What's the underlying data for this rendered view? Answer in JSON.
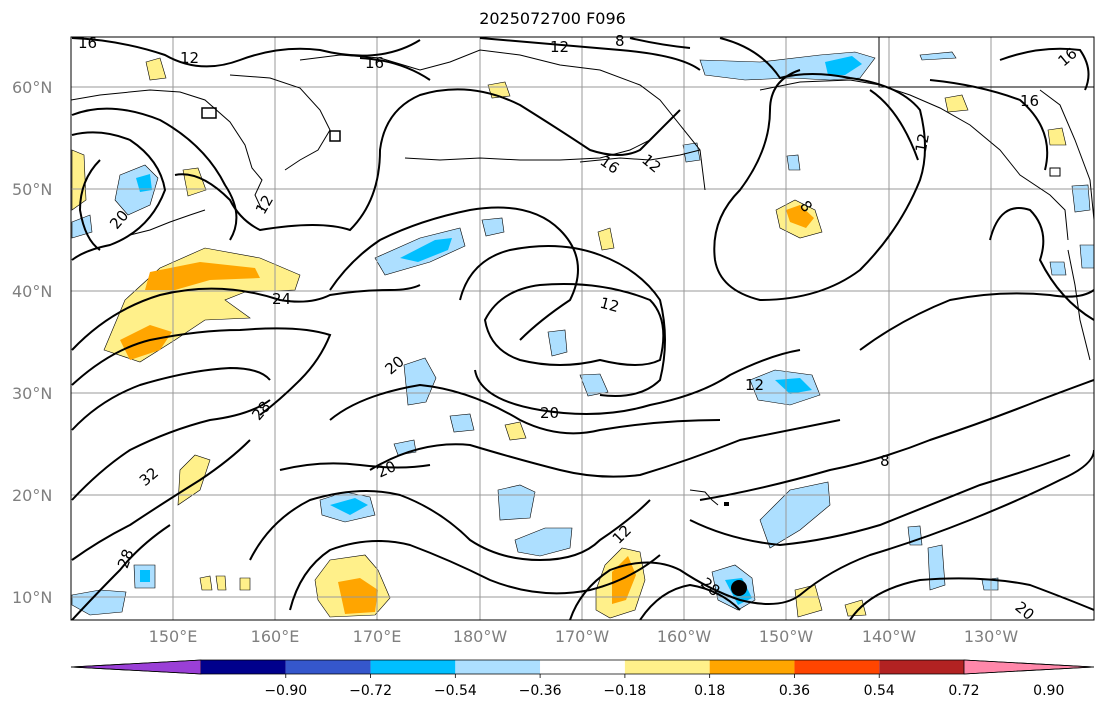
{
  "title": "2025072700 F096",
  "map": {
    "lat_labels": [
      "60°N",
      "50°N",
      "40°N",
      "30°N",
      "20°N",
      "10°N"
    ],
    "lon_labels": [
      "150°E",
      "160°E",
      "170°E",
      "180°W",
      "170°W",
      "160°W",
      "150°W",
      "140°W",
      "130°W"
    ],
    "contour_labels": [
      "16",
      "12",
      "16",
      "12",
      "8",
      "16",
      "12",
      "16",
      "12",
      "20",
      "16",
      "12",
      "24",
      "20",
      "12",
      "8",
      "12",
      "20",
      "28",
      "20",
      "32",
      "12",
      "28",
      "8",
      "28",
      "20"
    ],
    "marker": {
      "type": "storm-center",
      "lat": 11,
      "lon": -155
    }
  },
  "colorbar": {
    "ticks": [
      "−0.90",
      "−0.72",
      "−0.54",
      "−0.36",
      "−0.18",
      "0.18",
      "0.36",
      "0.54",
      "0.72",
      "0.90"
    ],
    "colors": [
      "#9a3fd6",
      "#00008c",
      "#3557cc",
      "#00bfff",
      "#addfff",
      "#ffffff",
      "#fff08a",
      "#ffa500",
      "#ff4500",
      "#b22222",
      "#ff88aa"
    ],
    "extend": "both"
  },
  "colors": {
    "land_outline": "#000000",
    "grid": "#999999",
    "contour": "#000000"
  }
}
